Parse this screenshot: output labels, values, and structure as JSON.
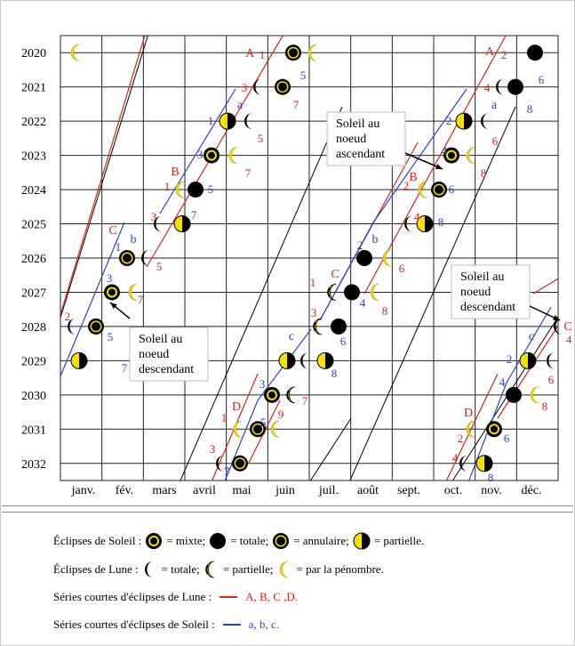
{
  "years": [
    "2020",
    "2021",
    "2022",
    "2023",
    "2024",
    "2025",
    "2026",
    "2027",
    "2028",
    "2029",
    "2030",
    "2031",
    "2032"
  ],
  "months": [
    "janv.",
    "fév.",
    "mars",
    "avril",
    "mai",
    "juin",
    "juil.",
    "août",
    "sept.",
    "oct.",
    "nov.",
    "déc."
  ],
  "callouts": [
    {
      "id": "c1",
      "lines": [
        "Soleil au",
        "noeud",
        "ascendant"
      ]
    },
    {
      "id": "c2",
      "lines": [
        "Soleil au",
        "noeud",
        "descendant"
      ]
    },
    {
      "id": "c3",
      "lines": [
        "Soleil au",
        "noeud",
        "descendant"
      ]
    }
  ],
  "series_labels": {
    "lunar": [
      "A",
      "B",
      "C",
      "D",
      "A",
      "B",
      "C",
      "D",
      "C"
    ],
    "solar": [
      "a",
      "b",
      "c",
      "a",
      "b",
      "c"
    ]
  },
  "numbers": [
    "1",
    "2",
    "3",
    "4",
    "5",
    "6",
    "7",
    "8",
    "9"
  ],
  "legend": {
    "solar_prefix": "Éclipses de Soleil :",
    "mixte": "= mixte;",
    "totale": "= totale;",
    "annulaire": "=  annulaire;",
    "partielle": "= partielle.",
    "lunar_prefix": "Éclipses de Lune  :",
    "lune_totale": "= totale;",
    "lune_partielle": "= partielle;",
    "lune_penombre": "= par la pénombre.",
    "lunar_series_label": "Séries courtes d'éclipses de Lune :",
    "lunar_series_values": "A, B, C ,D.",
    "solar_series_label": "Séries courtes d'éclipses de Soleil :",
    "solar_series_values": "a, b, c."
  },
  "colors": {
    "red": "#e0201a",
    "blue": "#2b3fd6",
    "yellow": "#f5e000",
    "grid": "#222222"
  }
}
